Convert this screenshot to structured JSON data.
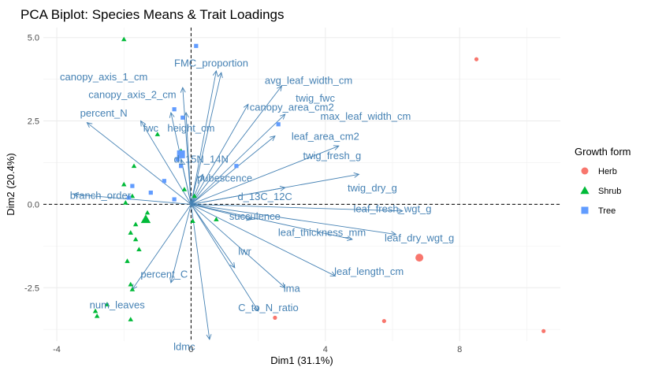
{
  "chart_data": {
    "type": "scatter",
    "title": "PCA Biplot: Species Means & Trait Loadings",
    "xlabel": "Dim1 (31.1%)",
    "ylabel": "Dim2 (20.4%)",
    "xlim": [
      -4.4,
      11.0
    ],
    "ylim": [
      -4.1,
      5.3
    ],
    "xticks": [
      -4,
      0,
      4,
      8
    ],
    "yticks": [
      -2.5,
      0.0,
      2.5,
      5.0
    ],
    "xtick_labels": [
      "-4",
      "0",
      "4",
      "8"
    ],
    "ytick_labels": [
      "-2.5",
      "0.0",
      "2.5",
      "5.0"
    ],
    "grid": true,
    "reference_lines": {
      "x": 0,
      "y": 0,
      "style": "dashed"
    },
    "legend": {
      "title": "Growth form",
      "position": "right"
    },
    "colors": {
      "Herb": "#F8766D",
      "Shrub": "#00BA38",
      "Tree": "#619CFF",
      "arrows": "#4682B4"
    },
    "series": [
      {
        "name": "Herb",
        "shape": "circle",
        "points": [
          [
            8.5,
            4.35
          ],
          [
            5.75,
            -3.5
          ],
          [
            10.5,
            -3.8
          ],
          [
            2.5,
            -3.4
          ]
        ],
        "centroid": [
          6.8,
          -1.6
        ]
      },
      {
        "name": "Shrub",
        "shape": "triangle",
        "points": [
          [
            -2.0,
            4.95
          ],
          [
            -1.0,
            2.1
          ],
          [
            -0.3,
            1.6
          ],
          [
            -1.7,
            1.15
          ],
          [
            -2.0,
            0.6
          ],
          [
            -1.75,
            0.25
          ],
          [
            -1.95,
            0.05
          ],
          [
            -1.65,
            -0.6
          ],
          [
            -1.8,
            -0.85
          ],
          [
            -1.65,
            -1.05
          ],
          [
            -1.55,
            -1.35
          ],
          [
            -1.3,
            -0.25
          ],
          [
            -1.9,
            -1.7
          ],
          [
            -1.8,
            -2.4
          ],
          [
            -1.75,
            -2.55
          ],
          [
            -2.5,
            -3.0
          ],
          [
            -2.85,
            -3.2
          ],
          [
            -2.8,
            -3.35
          ],
          [
            -1.8,
            -3.45
          ],
          [
            -0.2,
            0.45
          ],
          [
            0.75,
            -0.45
          ],
          [
            0.05,
            -0.5
          ],
          [
            0.1,
            0.25
          ]
        ],
        "centroid": [
          -1.35,
          -0.45
        ]
      },
      {
        "name": "Tree",
        "shape": "square",
        "points": [
          [
            0.15,
            4.75
          ],
          [
            -0.5,
            2.85
          ],
          [
            -0.25,
            2.6
          ],
          [
            2.6,
            2.4
          ],
          [
            -0.4,
            1.35
          ],
          [
            -0.3,
            1.15
          ],
          [
            1.35,
            1.15
          ],
          [
            -0.8,
            0.7
          ],
          [
            -1.75,
            0.55
          ],
          [
            -1.2,
            0.35
          ],
          [
            -1.85,
            0.2
          ],
          [
            -0.5,
            0.15
          ]
        ],
        "centroid": [
          -0.3,
          1.5
        ]
      }
    ],
    "loadings": [
      {
        "name": "FMC_proportion",
        "x": 0.75,
        "y": 4.0,
        "label_x": 0.6,
        "label_y": 4.25
      },
      {
        "name": "avg_leaf_width_cm",
        "x": 0.9,
        "y": 3.95,
        "label_x": 3.5,
        "label_y": 3.73
      },
      {
        "name": "canopy_axis_1_cm",
        "x": -0.25,
        "y": 3.5,
        "label_x": -2.6,
        "label_y": 3.83
      },
      {
        "name": "canopy_axis_2_cm",
        "x": -0.15,
        "y": 2.75,
        "label_x": -1.75,
        "label_y": 3.3
      },
      {
        "name": "canopy_area_cm2",
        "x": 1.7,
        "y": 3.0,
        "label_x": 3.0,
        "label_y": 2.93
      },
      {
        "name": "percent_N",
        "x": -3.1,
        "y": 2.45,
        "label_x": -2.6,
        "label_y": 2.75
      },
      {
        "name": "twig_fwc",
        "x": 2.7,
        "y": 3.55,
        "label_x": 3.7,
        "label_y": 3.2
      },
      {
        "name": "max_leaf_width_cm",
        "x": 2.8,
        "y": 2.7,
        "label_x": 5.2,
        "label_y": 2.65
      },
      {
        "name": "fwc",
        "x": -1.5,
        "y": 2.5,
        "label_x": -1.2,
        "label_y": 2.3
      },
      {
        "name": "height_cm",
        "x": -0.6,
        "y": 2.75,
        "label_x": 0.0,
        "label_y": 2.3
      },
      {
        "name": "leaf_area_cm2",
        "x": 2.5,
        "y": 2.05,
        "label_x": 4.0,
        "label_y": 2.05
      },
      {
        "name": "twig_fresh_g",
        "x": 4.4,
        "y": 1.75,
        "label_x": 4.2,
        "label_y": 1.47
      },
      {
        "name": "d_15N_14N",
        "x": -0.3,
        "y": 1.35,
        "label_x": 0.3,
        "label_y": 1.37
      },
      {
        "name": "pubescence",
        "x": 0.35,
        "y": 0.9,
        "label_x": 1.0,
        "label_y": 0.8
      },
      {
        "name": "twig_dry_g",
        "x": 5.0,
        "y": 0.9,
        "label_x": 5.4,
        "label_y": 0.5
      },
      {
        "name": "d_13C_12C",
        "x": 2.8,
        "y": 0.5,
        "label_x": 2.2,
        "label_y": 0.25
      },
      {
        "name": "branch_order",
        "x": -3.5,
        "y": 0.3,
        "label_x": -2.7,
        "label_y": 0.28
      },
      {
        "name": "leaf_fresh_wgt_g",
        "x": 6.3,
        "y": -0.2,
        "label_x": 6.0,
        "label_y": -0.12
      },
      {
        "name": "succulence",
        "x": 1.8,
        "y": -0.45,
        "label_x": 1.9,
        "label_y": -0.35
      },
      {
        "name": "leaf_thickness_mm",
        "x": 4.8,
        "y": -1.05,
        "label_x": 3.9,
        "label_y": -0.83
      },
      {
        "name": "leaf_dry_wgt_g",
        "x": 6.1,
        "y": -0.9,
        "label_x": 6.8,
        "label_y": -1.0
      },
      {
        "name": "lwr",
        "x": 1.3,
        "y": -1.9,
        "label_x": 1.6,
        "label_y": -1.4
      },
      {
        "name": "leaf_length_cm",
        "x": 4.3,
        "y": -2.15,
        "label_x": 5.3,
        "label_y": -2.0
      },
      {
        "name": "percent_C",
        "x": -0.6,
        "y": -2.35,
        "label_x": -0.8,
        "label_y": -2.08
      },
      {
        "name": "lma",
        "x": 2.8,
        "y": -2.5,
        "label_x": 3.0,
        "label_y": -2.5
      },
      {
        "name": "num_leaves",
        "x": -1.75,
        "y": -2.55,
        "label_x": -2.2,
        "label_y": -3.0
      },
      {
        "name": "C_to_N_ratio",
        "x": 2.0,
        "y": -3.2,
        "label_x": 2.3,
        "label_y": -3.08
      },
      {
        "name": "ldmc",
        "x": 0.55,
        "y": -4.05,
        "label_x": -0.2,
        "label_y": -4.25
      }
    ]
  }
}
